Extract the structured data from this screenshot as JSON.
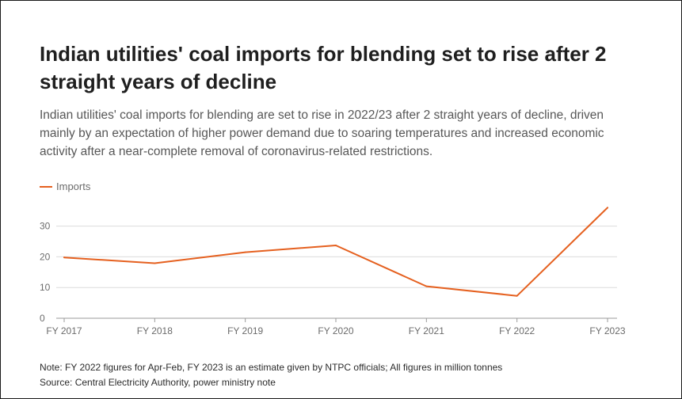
{
  "title": "Indian utilities' coal imports for blending set to rise after 2 straight years of decline",
  "subtitle": "Indian utilities' coal imports for blending are set to rise in 2022/23 after 2 straight years of decline, driven mainly by an expectation of higher power demand due to soaring temperatures and increased economic activity after a near-complete removal of coronavirus-related restrictions.",
  "note": "Note: FY 2022 figures for Apr-Feb, FY 2023 is an estimate given by NTPC officials; All figures in million tonnes",
  "source": "Source: Central Electricity Authority, power ministry note",
  "colors": {
    "series": "#e5601f",
    "grid": "#dcdcdc",
    "axis": "#9a9a9a",
    "tick_text": "#6b6b6b"
  },
  "chart_data": {
    "type": "line",
    "categories": [
      "FY 2017",
      "FY 2018",
      "FY 2019",
      "FY 2020",
      "FY 2021",
      "FY 2022",
      "FY 2023"
    ],
    "series": [
      {
        "name": "Imports",
        "values": [
          19.8,
          17.9,
          21.5,
          23.7,
          10.4,
          7.3,
          36.0
        ]
      }
    ],
    "yticks": [
      0,
      10,
      20,
      30
    ],
    "ylim": [
      0,
      36
    ],
    "grid": true,
    "legend": "top-left",
    "xlabel": "",
    "ylabel": ""
  }
}
